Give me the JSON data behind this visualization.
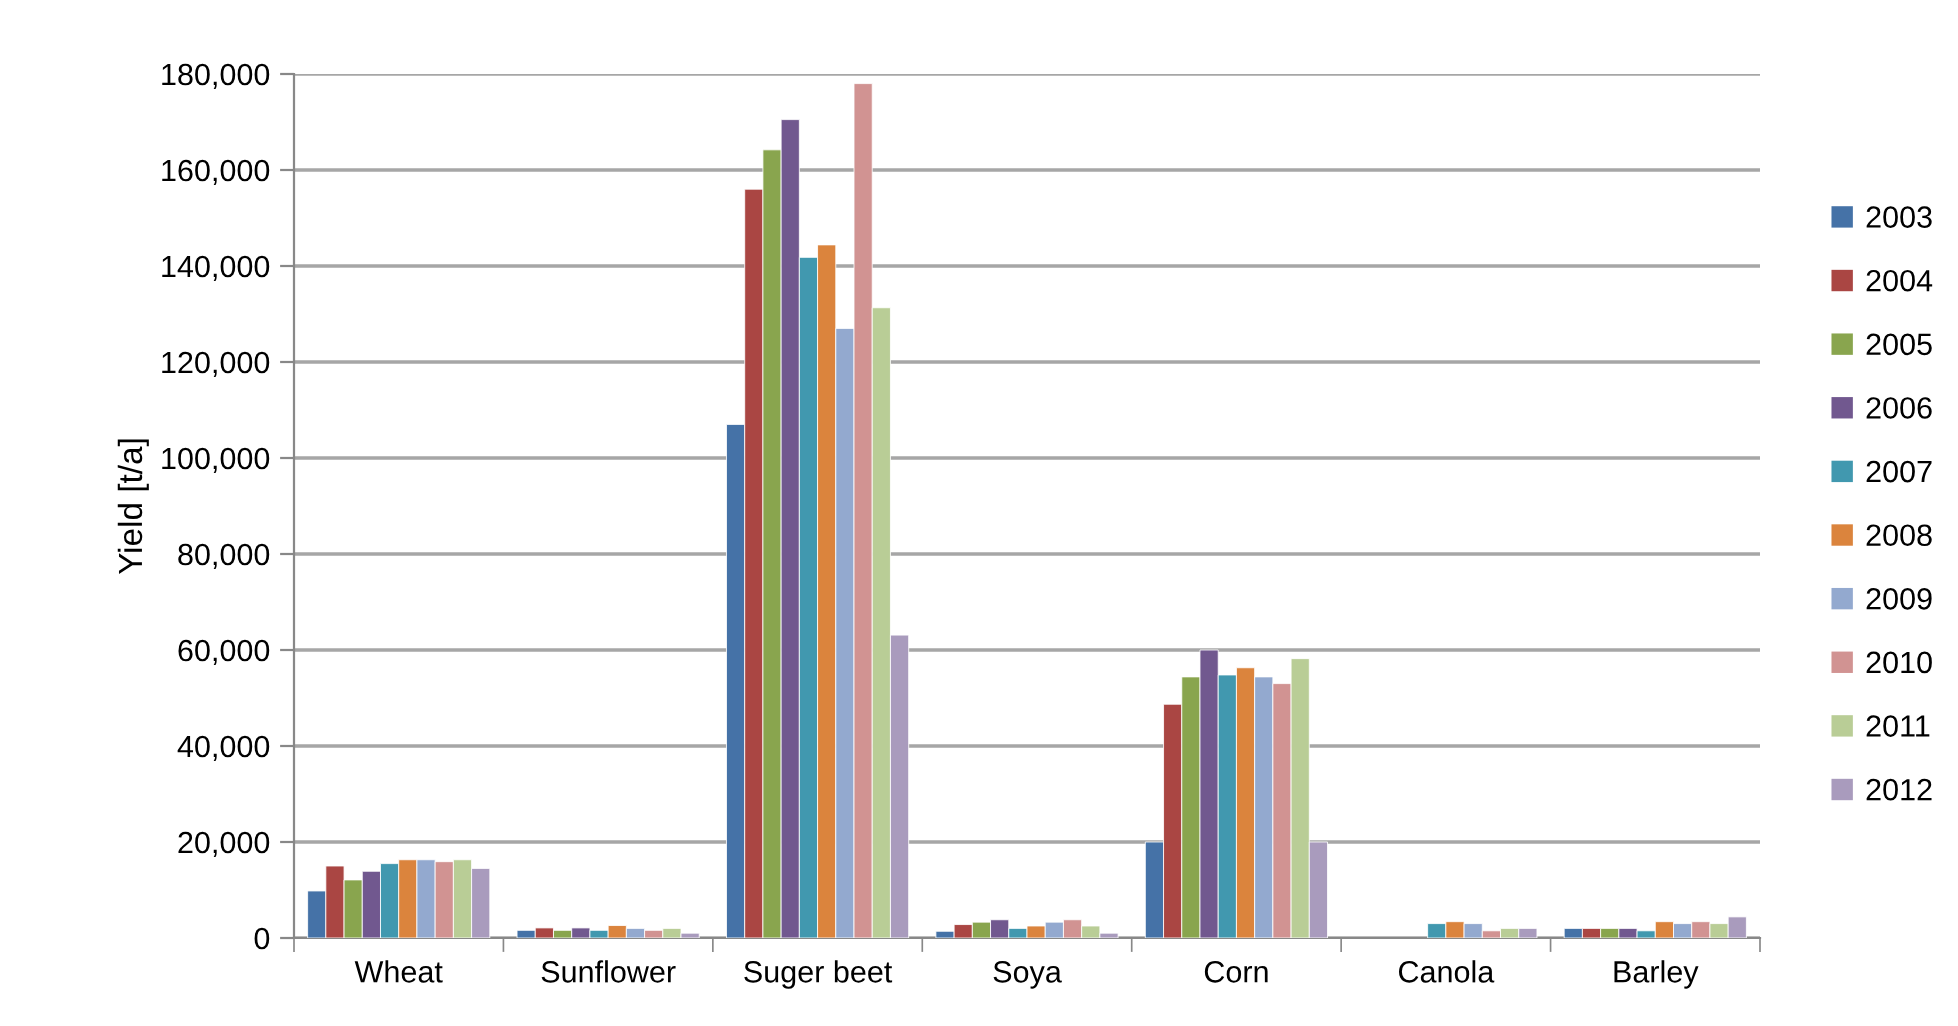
{
  "chart_data": {
    "type": "bar",
    "ylabel": "Yield [t/a]",
    "categories": [
      "Wheat",
      "Sunflower",
      "Suger beet",
      "Soya",
      "Corn",
      "Canola",
      "Barley"
    ],
    "series": [
      {
        "name": "2003",
        "color": "#4572a7",
        "values": [
          9800,
          1600,
          107000,
          1400,
          20000,
          null,
          2000
        ]
      },
      {
        "name": "2004",
        "color": "#aa4643",
        "values": [
          15000,
          2100,
          156000,
          2800,
          48700,
          null,
          2000
        ]
      },
      {
        "name": "2005",
        "color": "#89a54e",
        "values": [
          12100,
          1600,
          164200,
          3300,
          54400,
          null,
          2000
        ]
      },
      {
        "name": "2006",
        "color": "#71588f",
        "values": [
          13900,
          2100,
          170500,
          3800,
          60000,
          null,
          2000
        ]
      },
      {
        "name": "2007",
        "color": "#4198af",
        "values": [
          15500,
          1600,
          141800,
          2000,
          54800,
          3000,
          1500
        ]
      },
      {
        "name": "2008",
        "color": "#db843d",
        "values": [
          16300,
          2600,
          144400,
          2500,
          56300,
          3400,
          3400
        ]
      },
      {
        "name": "2009",
        "color": "#93a9cf",
        "values": [
          16300,
          2000,
          127000,
          3300,
          54400,
          3000,
          3000
        ]
      },
      {
        "name": "2010",
        "color": "#d19392",
        "values": [
          15900,
          1600,
          178000,
          3800,
          53000,
          1500,
          3400
        ]
      },
      {
        "name": "2011",
        "color": "#b9cd96",
        "values": [
          16300,
          2000,
          131300,
          2500,
          58200,
          2000,
          3000
        ]
      },
      {
        "name": "2012",
        "color": "#a99bbd",
        "values": [
          14500,
          1000,
          63100,
          1000,
          20000,
          2000,
          4400
        ]
      }
    ],
    "ylim": [
      0,
      180000
    ],
    "yticks": [
      {
        "value": 0,
        "label": "0"
      },
      {
        "value": 20000,
        "label": "20,000"
      },
      {
        "value": 40000,
        "label": "40,000"
      },
      {
        "value": 60000,
        "label": "60,000"
      },
      {
        "value": 80000,
        "label": "80,000"
      },
      {
        "value": 100000,
        "label": "100,000"
      },
      {
        "value": 120000,
        "label": "120,000"
      },
      {
        "value": 140000,
        "label": "140,000"
      },
      {
        "value": 160000,
        "label": "160,000"
      },
      {
        "value": 180000,
        "label": "180,000"
      }
    ],
    "grid": "y",
    "legend": "right"
  }
}
